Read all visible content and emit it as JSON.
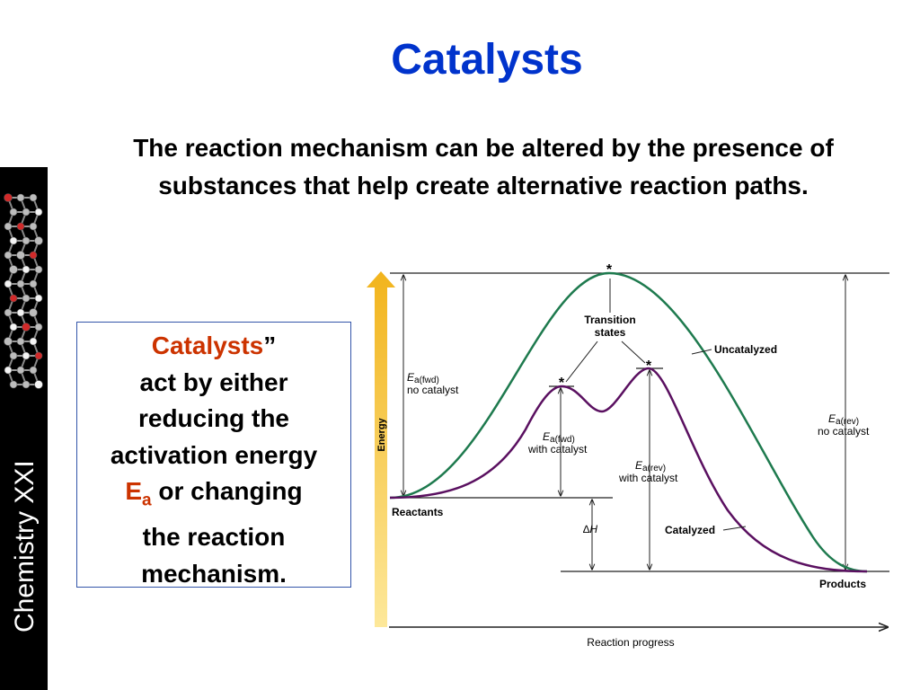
{
  "slide": {
    "title": "Catalysts",
    "intro": "The reaction mechanism can be altered by the presence of substances that help create alternative reaction paths."
  },
  "sidebar": {
    "label": "Chemistry XXI"
  },
  "callout": {
    "heading": "Catalysts",
    "quote": "”",
    "line1": "act by either",
    "line2": "reducing the",
    "line3": "activation energy",
    "ea_main": "E",
    "ea_sub": "a",
    "line4": " or changing",
    "line5": "the reaction",
    "line6": "mechanism."
  },
  "diagram": {
    "y_axis": "Energy",
    "x_axis": "Reaction progress",
    "star": "*",
    "transition_line1": "Transition",
    "transition_line2": "states",
    "uncatalyzed": "Uncatalyzed",
    "catalyzed": "Catalyzed",
    "reactants": "Reactants",
    "products": "Products",
    "delta_h_symbol": "∆",
    "delta_h_var": "H",
    "ea_symbol": "E",
    "fwd_sub": "a(fwd)",
    "rev_sub": "a(rev)",
    "no_catalyst": "no catalyst",
    "with_catalyst": "with catalyst",
    "colors": {
      "uncatalyzed": "#1e7a4e",
      "catalyzed": "#5a1060",
      "axis_arrow": "#f0b020"
    }
  }
}
